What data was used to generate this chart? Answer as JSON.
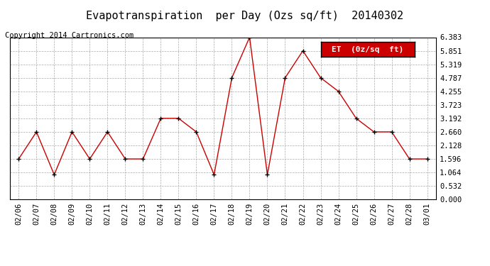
{
  "title": "Evapotranspiration  per Day (Ozs sq/ft)  20140302",
  "copyright": "Copyright 2014 Cartronics.com",
  "legend_label": "ET  (0z/sq  ft)",
  "x_labels": [
    "02/06",
    "02/07",
    "02/08",
    "02/09",
    "02/10",
    "02/11",
    "02/12",
    "02/13",
    "02/14",
    "02/15",
    "02/16",
    "02/17",
    "02/18",
    "02/19",
    "02/20",
    "02/21",
    "02/22",
    "02/23",
    "02/24",
    "02/25",
    "02/26",
    "02/27",
    "02/28",
    "03/01"
  ],
  "y_values": [
    1.596,
    2.66,
    0.976,
    2.66,
    1.596,
    2.66,
    1.596,
    1.596,
    3.192,
    3.192,
    2.66,
    0.976,
    4.787,
    6.383,
    0.976,
    4.787,
    5.851,
    4.787,
    4.255,
    3.192,
    2.66,
    2.66,
    1.596,
    1.596
  ],
  "y_ticks": [
    0.0,
    0.532,
    1.064,
    1.596,
    2.128,
    2.66,
    3.192,
    3.723,
    4.255,
    4.787,
    5.319,
    5.851,
    6.383
  ],
  "line_color": "#cc0000",
  "marker_color": "#000000",
  "background_color": "#ffffff",
  "grid_color": "#aaaaaa",
  "title_fontsize": 11,
  "copyright_fontsize": 7.5,
  "tick_fontsize": 7.5,
  "legend_bg_color": "#cc0000",
  "legend_text_color": "#ffffff",
  "legend_fontsize": 8
}
